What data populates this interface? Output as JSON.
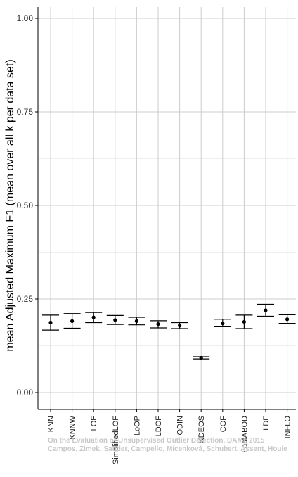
{
  "chart_data": {
    "type": "scatter",
    "title": "",
    "xlabel": "",
    "ylabel": "mean Adjusted Maximum F1 (mean over all k per data set)",
    "ylim": [
      0,
      1.0
    ],
    "y_ticks": [
      "0.00",
      "0.25",
      "0.50",
      "0.75",
      "1.00"
    ],
    "y_tick_values": [
      0,
      0.25,
      0.5,
      0.75,
      1.0
    ],
    "grid": true,
    "error_bars": true,
    "categories": [
      "KNN",
      "KNNW",
      "LOF",
      "SimplifiedLOF",
      "LoOP",
      "LDOF",
      "ODIN",
      "KDEOS",
      "COF",
      "FastABOD",
      "LDF",
      "INFLO"
    ],
    "series": [
      {
        "mean": [
          0.187,
          0.191,
          0.201,
          0.194,
          0.191,
          0.183,
          0.179,
          0.093,
          0.185,
          0.189,
          0.22,
          0.196
        ],
        "lower": [
          0.167,
          0.172,
          0.187,
          0.182,
          0.181,
          0.173,
          0.171,
          0.09,
          0.176,
          0.171,
          0.204,
          0.185
        ],
        "upper": [
          0.207,
          0.211,
          0.214,
          0.206,
          0.201,
          0.192,
          0.187,
          0.096,
          0.196,
          0.207,
          0.236,
          0.208
        ]
      }
    ],
    "colors": {
      "panel_background": "#ffffff",
      "grid_major": "#cccccc",
      "grid_minor": "#eeeeee",
      "point": "#000000",
      "error_bar": "#000000",
      "axis_line": "#000000"
    }
  },
  "watermark": {
    "line1": "On the Evaluation of Unsupervised Outlier Detection, DAMI, 2015",
    "line2": "Campos, Zimek, Sander, Campello, Micenková, Schubert, Assent, Houle"
  }
}
